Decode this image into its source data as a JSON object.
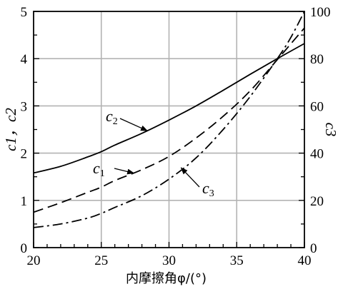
{
  "chart_data": {
    "type": "line",
    "title": "",
    "xlabel": "内摩擦角φ/(°)",
    "ylabel_left": "c1，c2",
    "ylabel_right": "c3",
    "xlim": [
      20,
      40
    ],
    "ylim_left": [
      0,
      5
    ],
    "ylim_right": [
      0,
      100
    ],
    "x_ticks": [
      20,
      25,
      30,
      35,
      40
    ],
    "y_ticks_left": [
      0,
      1,
      2,
      3,
      4,
      5
    ],
    "y_ticks_right": [
      0,
      20,
      40,
      60,
      80,
      100
    ],
    "grid": true,
    "series": [
      {
        "name": "c2",
        "axis": "left",
        "style": "solid",
        "x": [
          20,
          22,
          24,
          25,
          26,
          28,
          30,
          32,
          34,
          36,
          38,
          40
        ],
        "y": [
          1.58,
          1.72,
          1.92,
          2.03,
          2.17,
          2.42,
          2.7,
          3.0,
          3.33,
          3.67,
          4.0,
          4.32
        ]
      },
      {
        "name": "c1",
        "axis": "left",
        "style": "dashed",
        "x": [
          20,
          22,
          24,
          25,
          26,
          28,
          30,
          32,
          34,
          36,
          38,
          40
        ],
        "y": [
          0.75,
          0.95,
          1.17,
          1.28,
          1.42,
          1.65,
          1.93,
          2.32,
          2.78,
          3.32,
          3.98,
          4.65
        ]
      },
      {
        "name": "c3",
        "axis": "right",
        "style": "dashdot",
        "x": [
          20,
          22,
          24,
          25,
          26,
          28,
          30,
          32,
          34,
          36,
          38,
          39,
          40
        ],
        "y": [
          8.5,
          10,
          12.5,
          14.5,
          17,
          22,
          29,
          38,
          50,
          64,
          80,
          89,
          100
        ]
      }
    ],
    "annotations": [
      {
        "series": "c2",
        "text": "c",
        "sub": "2",
        "arrow_to_x": 28.5
      },
      {
        "series": "c1",
        "text": "c",
        "sub": "1",
        "arrow_to_x": 27.5
      },
      {
        "series": "c3",
        "text": "c",
        "sub": "3",
        "arrow_to_x": 31.0
      }
    ]
  }
}
